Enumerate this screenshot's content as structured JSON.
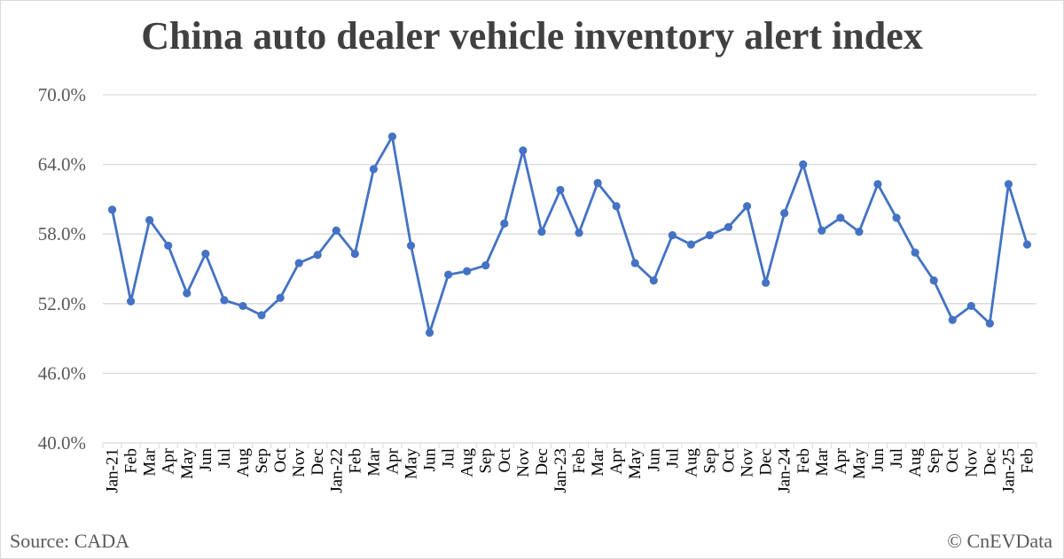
{
  "title": "China auto dealer vehicle inventory alert index",
  "footer": {
    "source": "Source: CADA",
    "credit": "© CnEVData"
  },
  "colors": {
    "line": "#4472c4",
    "grid": "#d9d9d9",
    "axis_text": "#595959"
  },
  "chart_data": {
    "type": "line",
    "title": "China auto dealer vehicle inventory alert index",
    "xlabel": "",
    "ylabel": "",
    "ylim": [
      40,
      70
    ],
    "yticks": [
      "40.0%",
      "46.0%",
      "52.0%",
      "58.0%",
      "64.0%",
      "70.0%"
    ],
    "grid": true,
    "legend": "none",
    "categories": [
      "Jan-21",
      "Feb",
      "Mar",
      "Apr",
      "May",
      "Jun",
      "Jul",
      "Aug",
      "Sep",
      "Oct",
      "Nov",
      "Dec",
      "Jan-22",
      "Feb",
      "Mar",
      "Apr",
      "May",
      "Jun",
      "Jul",
      "Aug",
      "Sep",
      "Oct",
      "Nov",
      "Dec",
      "Jan-23",
      "Feb",
      "Mar",
      "Apr",
      "May",
      "Jun",
      "Jul",
      "Aug",
      "Sep",
      "Oct",
      "Nov",
      "Dec",
      "Jan-24",
      "Feb",
      "Mar",
      "Apr",
      "May",
      "Jun",
      "Jul",
      "Aug",
      "Sep",
      "Oct",
      "Nov",
      "Dec",
      "Jan-25",
      "Feb"
    ],
    "series": [
      {
        "values": [
          60.1,
          52.2,
          59.2,
          57.0,
          52.9,
          56.3,
          52.3,
          51.8,
          51.0,
          52.5,
          55.5,
          56.2,
          58.3,
          56.3,
          63.6,
          66.4,
          57.0,
          49.5,
          54.5,
          54.8,
          55.3,
          58.9,
          65.2,
          58.2,
          61.8,
          58.1,
          62.4,
          60.4,
          55.5,
          54.0,
          57.9,
          57.1,
          57.9,
          58.6,
          60.4,
          53.8,
          59.8,
          64.0,
          58.3,
          59.4,
          58.2,
          62.3,
          59.4,
          56.4,
          54.0,
          50.6,
          51.8,
          50.3,
          62.3,
          57.1
        ]
      }
    ]
  }
}
